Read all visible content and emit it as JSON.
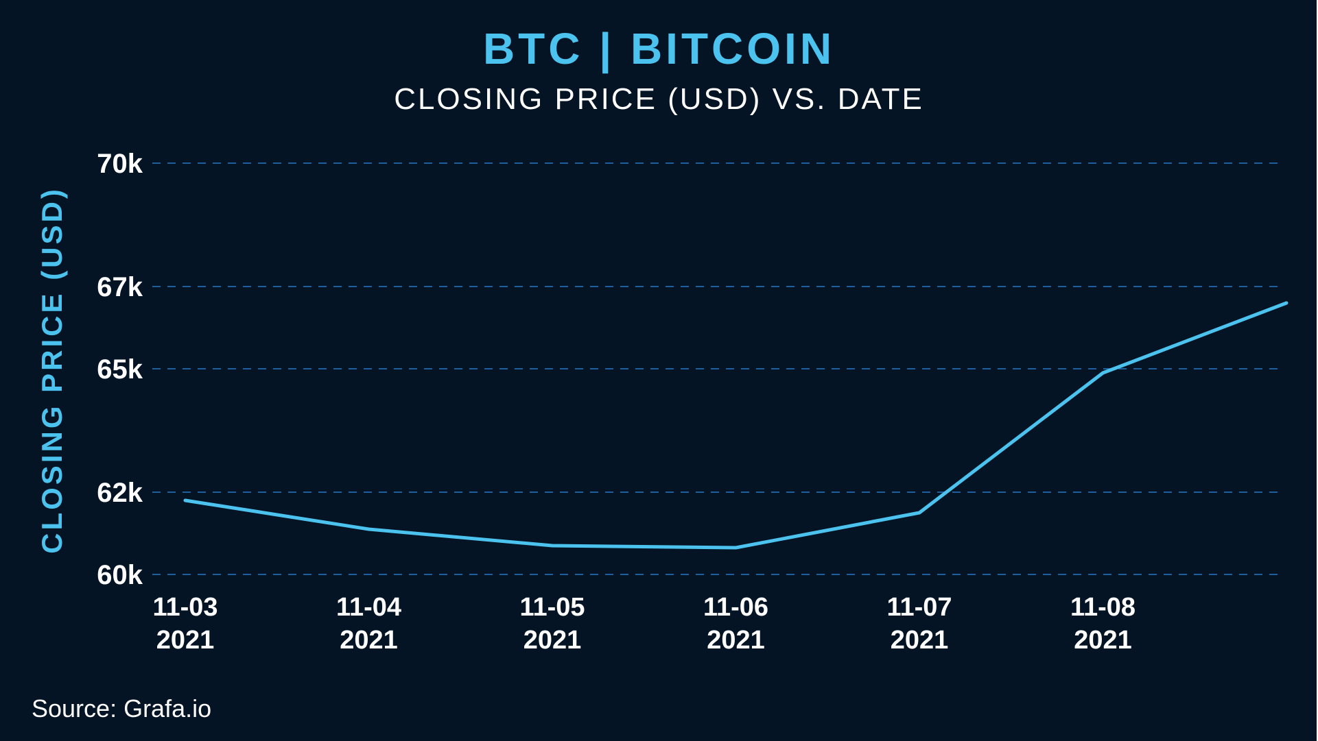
{
  "header": {
    "title": "BTC | BITCOIN",
    "subtitle": "CLOSING PRICE (USD) VS. DATE"
  },
  "footer": {
    "source": "Source: Grafa.io"
  },
  "colors": {
    "background": "#041424",
    "accent": "#4cc3ee",
    "gridline": "#1e5f9e",
    "text": "#ffffff"
  },
  "chart_data": {
    "type": "line",
    "title": "BTC | BITCOIN",
    "subtitle": "CLOSING PRICE (USD) VS. DATE",
    "xlabel": "",
    "ylabel": "CLOSING PRICE (USD)",
    "x": [
      "2021-11-03",
      "2021-11-04",
      "2021-11-05",
      "2021-11-06",
      "2021-11-07",
      "2021-11-08",
      "2021-11-09"
    ],
    "x_tick_labels": [
      {
        "date": "2021-11-03",
        "line1": "11-03",
        "line2": "2021"
      },
      {
        "date": "2021-11-04",
        "line1": "11-04",
        "line2": "2021"
      },
      {
        "date": "2021-11-05",
        "line1": "11-05",
        "line2": "2021"
      },
      {
        "date": "2021-11-06",
        "line1": "11-06",
        "line2": "2021"
      },
      {
        "date": "2021-11-07",
        "line1": "11-07",
        "line2": "2021"
      },
      {
        "date": "2021-11-08",
        "line1": "11-08",
        "line2": "2021"
      }
    ],
    "y_ticks": [
      {
        "value": 60000,
        "label": "60k"
      },
      {
        "value": 62000,
        "label": "62k"
      },
      {
        "value": 65000,
        "label": "65k"
      },
      {
        "value": 67000,
        "label": "67k"
      },
      {
        "value": 70000,
        "label": "70k"
      }
    ],
    "ylim": [
      60000,
      70000
    ],
    "series": [
      {
        "values": [
          61800,
          61100,
          60700,
          60650,
          61500,
          64900,
          66600
        ],
        "color": "#4cc3ee"
      }
    ],
    "grid": "horizontal dashed",
    "legend": "none"
  }
}
